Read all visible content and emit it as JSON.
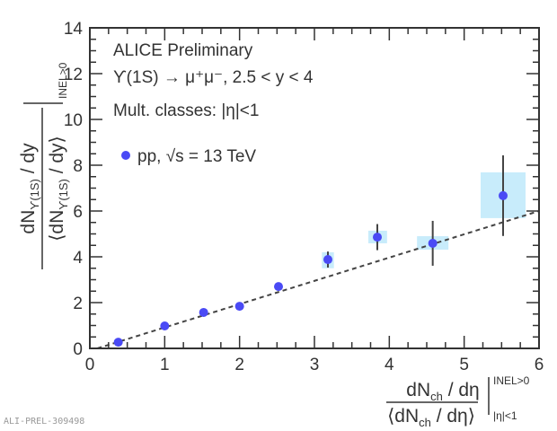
{
  "chart_data": {
    "type": "scatter",
    "title": "ALICE Preliminary",
    "annotations": [
      "ϒ(1S) → μ⁺μ⁻, 2.5 < y < 4",
      "Mult. classes: |η|<1"
    ],
    "xlabel": "dN_ch / dη ⟨dN_ch / dη⟩ |INEL>0 |η|<1",
    "xlabel_num": "dN",
    "xlabel_num_sub": "ch",
    "xlabel_num_rest": " / dη",
    "xlabel_den": "⟨dN",
    "xlabel_den_sub": "ch",
    "xlabel_den_rest": " / dη⟩",
    "xlabel_sup": "INEL>0",
    "xlabel_sub": "|η|<1",
    "ylabel_num": "dN",
    "ylabel_num_sub": "ϒ(1S)",
    "ylabel_num_rest": " / dy",
    "ylabel_den": "⟨dN",
    "ylabel_den_sub": "ϒ(1S)",
    "ylabel_den_rest": " / dy⟩",
    "ylabel_sup": "INEL>0",
    "xlim": [
      0,
      6
    ],
    "ylim": [
      0,
      14
    ],
    "xticks": [
      "0",
      "1",
      "2",
      "3",
      "4",
      "5",
      "6"
    ],
    "yticks": [
      "0",
      "2",
      "4",
      "6",
      "8",
      "10",
      "12",
      "14"
    ],
    "grid": false,
    "legend_position": "top-left",
    "series": [
      {
        "name": "pp, √s = 13 TeV",
        "color": "#4a4af5",
        "x": [
          0.38,
          1.0,
          1.52,
          2.0,
          2.52,
          3.18,
          3.84,
          4.58,
          5.52
        ],
        "y": [
          0.27,
          0.98,
          1.57,
          1.84,
          2.7,
          3.88,
          4.86,
          4.59,
          6.67
        ],
        "stat_err": [
          0.05,
          0.05,
          0.05,
          0.05,
          0.12,
          0.35,
          0.57,
          0.98,
          1.76
        ],
        "syst_box_x": [
          [
            0.34,
            0.42
          ],
          [
            0.96,
            1.04
          ],
          [
            1.48,
            1.56
          ],
          [
            1.96,
            2.04
          ],
          [
            2.47,
            2.57
          ],
          [
            3.1,
            3.26
          ],
          [
            3.72,
            3.97
          ],
          [
            4.37,
            4.79
          ],
          [
            5.22,
            5.82
          ]
        ],
        "syst_box_y": [
          [
            0.24,
            0.3
          ],
          [
            0.95,
            1.01
          ],
          [
            1.53,
            1.61
          ],
          [
            1.8,
            1.88
          ],
          [
            2.63,
            2.77
          ],
          [
            3.5,
            4.2
          ],
          [
            4.59,
            5.14
          ],
          [
            4.31,
            4.9
          ],
          [
            5.69,
            7.69
          ]
        ]
      }
    ],
    "syst_color": "#c8ecfb",
    "reference_line": {
      "style": "dashed",
      "x": [
        0.1,
        6
      ],
      "y": [
        0,
        6.0
      ]
    },
    "watermark": "ALI-PREL-309498"
  }
}
